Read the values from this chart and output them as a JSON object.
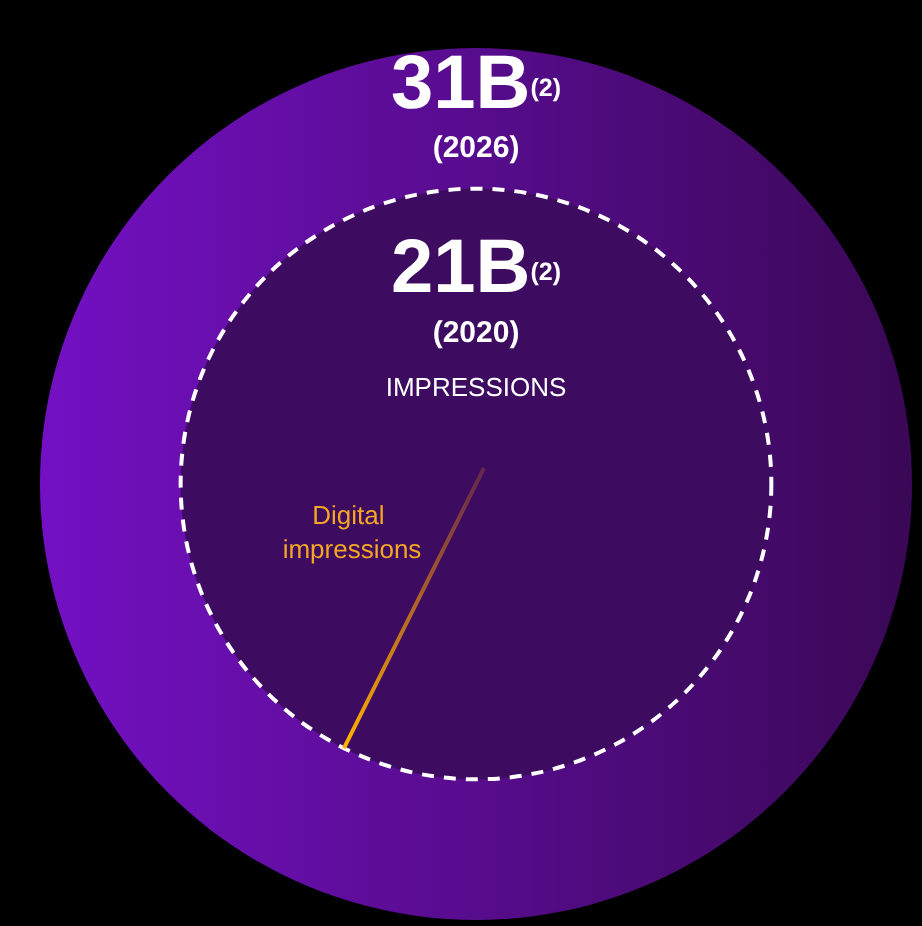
{
  "chart_data": {
    "type": "other",
    "categories": [
      "(2026)",
      "(2020)"
    ],
    "values": [
      31,
      21
    ],
    "value_labels": [
      "31B",
      "21B"
    ],
    "colors": [
      "#7410c4",
      "#3d0b60"
    ],
    "annotations": [
      "$^{(2)}$",
      "$^{(2)}$",
      "IMPRESSIONS",
      "Digital impressions"
    ]
  }
}
